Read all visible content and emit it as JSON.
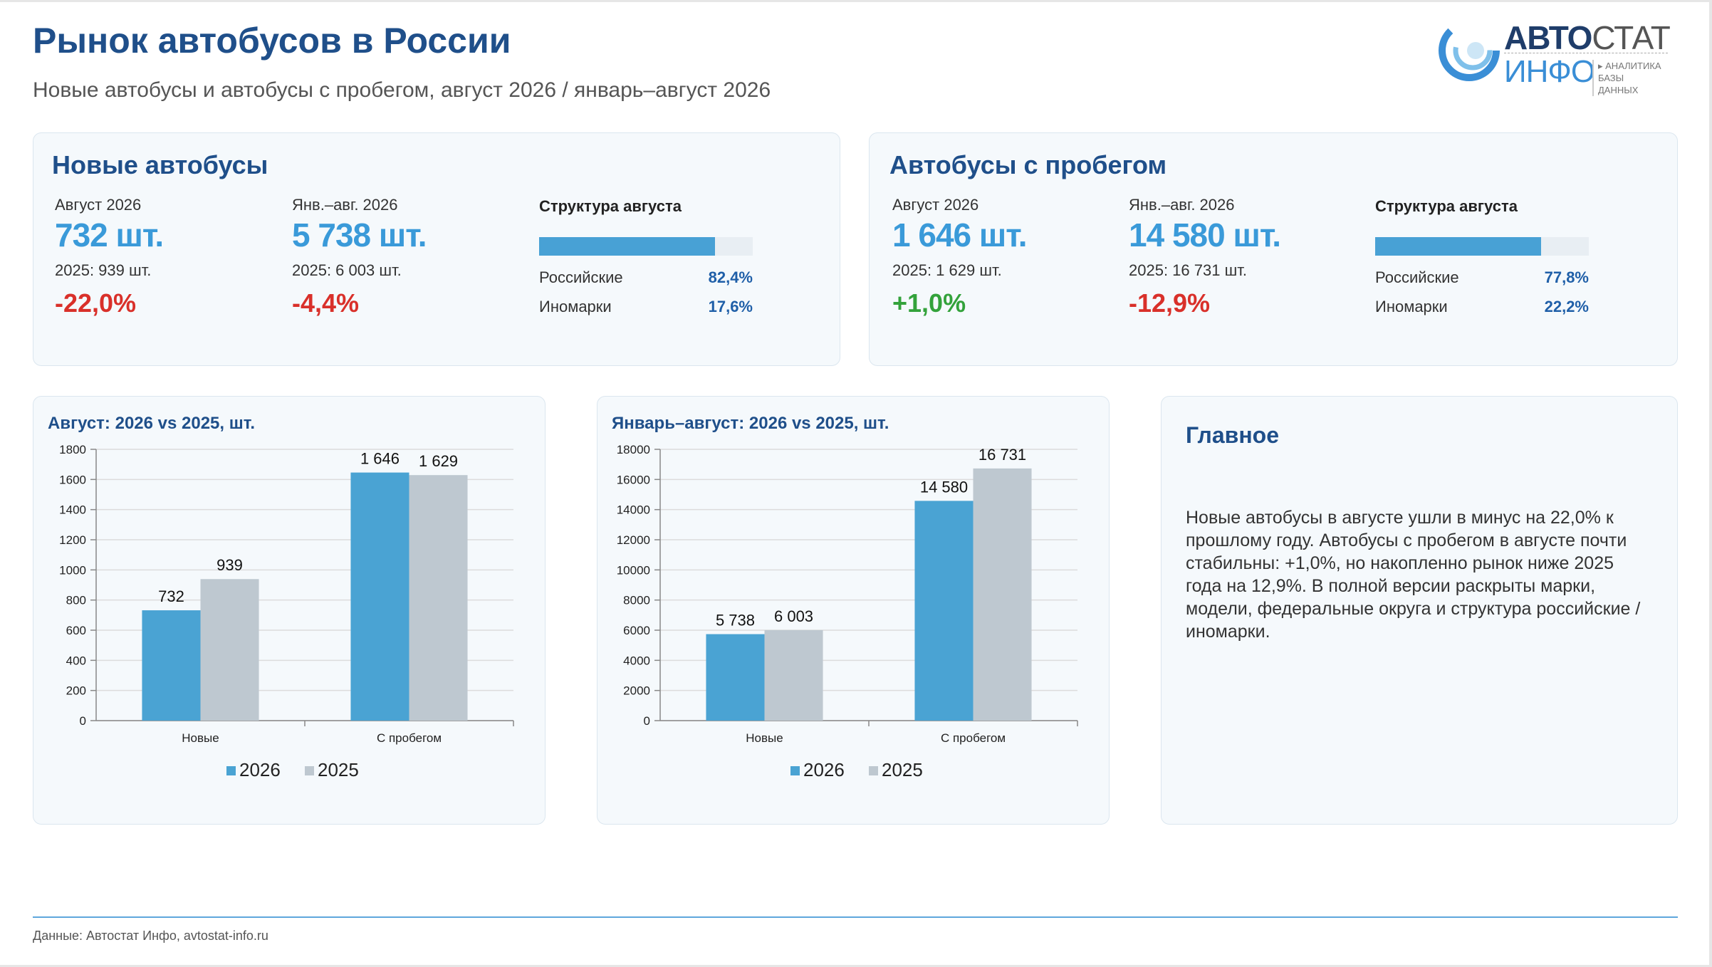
{
  "header": {
    "title": "Рынок автобусов в России",
    "subtitle": "Новые автобусы и автобусы с пробегом, август 2026 / январь–август 2026"
  },
  "logo": {
    "avto": "АВТО",
    "stat": "СТАТ",
    "info": "ИНФО",
    "sub1": "▸ АНАЛИТИКА",
    "sub2": "БАЗЫ ДАННЫХ"
  },
  "new_buses": {
    "title": "Новые автобусы",
    "month_label": "Август 2026",
    "month_value": "732 шт.",
    "month_prev": "2025: 939 шт.",
    "month_delta": "-22,0%",
    "ytd_label": "Янв.–авг. 2026",
    "ytd_value": "5 738 шт.",
    "ytd_prev": "2025: 6 003 шт.",
    "ytd_delta": "-4,4%",
    "structure_title": "Структура августа",
    "structure_share": 82.4,
    "russian_label": "Российские",
    "russian_value": "82,4%",
    "foreign_label": "Иномарки",
    "foreign_value": "17,6%"
  },
  "used_buses": {
    "title": "Автобусы с пробегом",
    "month_label": "Август 2026",
    "month_value": "1 646 шт.",
    "month_prev": "2025: 1 629 шт.",
    "month_delta": "+1,0%",
    "ytd_label": "Янв.–авг. 2026",
    "ytd_value": "14 580 шт.",
    "ytd_prev": "2025: 16 731 шт.",
    "ytd_delta": "-12,9%",
    "structure_title": "Структура августа",
    "structure_share": 77.8,
    "russian_label": "Российские",
    "russian_value": "77,8%",
    "foreign_label": "Иномарки",
    "foreign_value": "22,2%"
  },
  "colors": {
    "series_2026": "#4aa3d3",
    "series_2025": "#bec8d0",
    "negative": "#d9302a",
    "positive": "#33a23b"
  },
  "chart_data": [
    {
      "type": "bar",
      "title": "Август: 2026 vs 2025, шт.",
      "categories": [
        "Новые",
        "С пробегом"
      ],
      "series": [
        {
          "name": "2026",
          "values": [
            732,
            1646
          ],
          "labels": [
            "732",
            "1 646"
          ]
        },
        {
          "name": "2025",
          "values": [
            939,
            1629
          ],
          "labels": [
            "939",
            "1 629"
          ]
        }
      ],
      "ylim": [
        0,
        1800
      ],
      "yticks": [
        0,
        200,
        400,
        600,
        800,
        1000,
        1200,
        1400,
        1600,
        1800
      ],
      "grid": true,
      "legend": "bottom"
    },
    {
      "type": "bar",
      "title": "Январь–август: 2026 vs 2025, шт.",
      "categories": [
        "Новые",
        "С пробегом"
      ],
      "series": [
        {
          "name": "2026",
          "values": [
            5738,
            14580
          ],
          "labels": [
            "5 738",
            "14 580"
          ]
        },
        {
          "name": "2025",
          "values": [
            6003,
            16731
          ],
          "labels": [
            "6 003",
            "16 731"
          ]
        }
      ],
      "ylim": [
        0,
        18000
      ],
      "yticks": [
        0,
        2000,
        4000,
        6000,
        8000,
        10000,
        12000,
        14000,
        16000,
        18000
      ],
      "grid": true,
      "legend": "bottom"
    }
  ],
  "main": {
    "title": "Главное",
    "text": "Новые автобусы в августе ушли в минус на 22,0% к прошлому году. Автобусы с пробегом в августе почти стабильны: +1,0%, но накопленно рынок ниже 2025 года на 12,9%. В полной версии раскрыты марки, модели, федеральные округа и структура российские / иномарки."
  },
  "footer": {
    "text": "Данные: Автостат Инфо, avtostat-info.ru"
  }
}
